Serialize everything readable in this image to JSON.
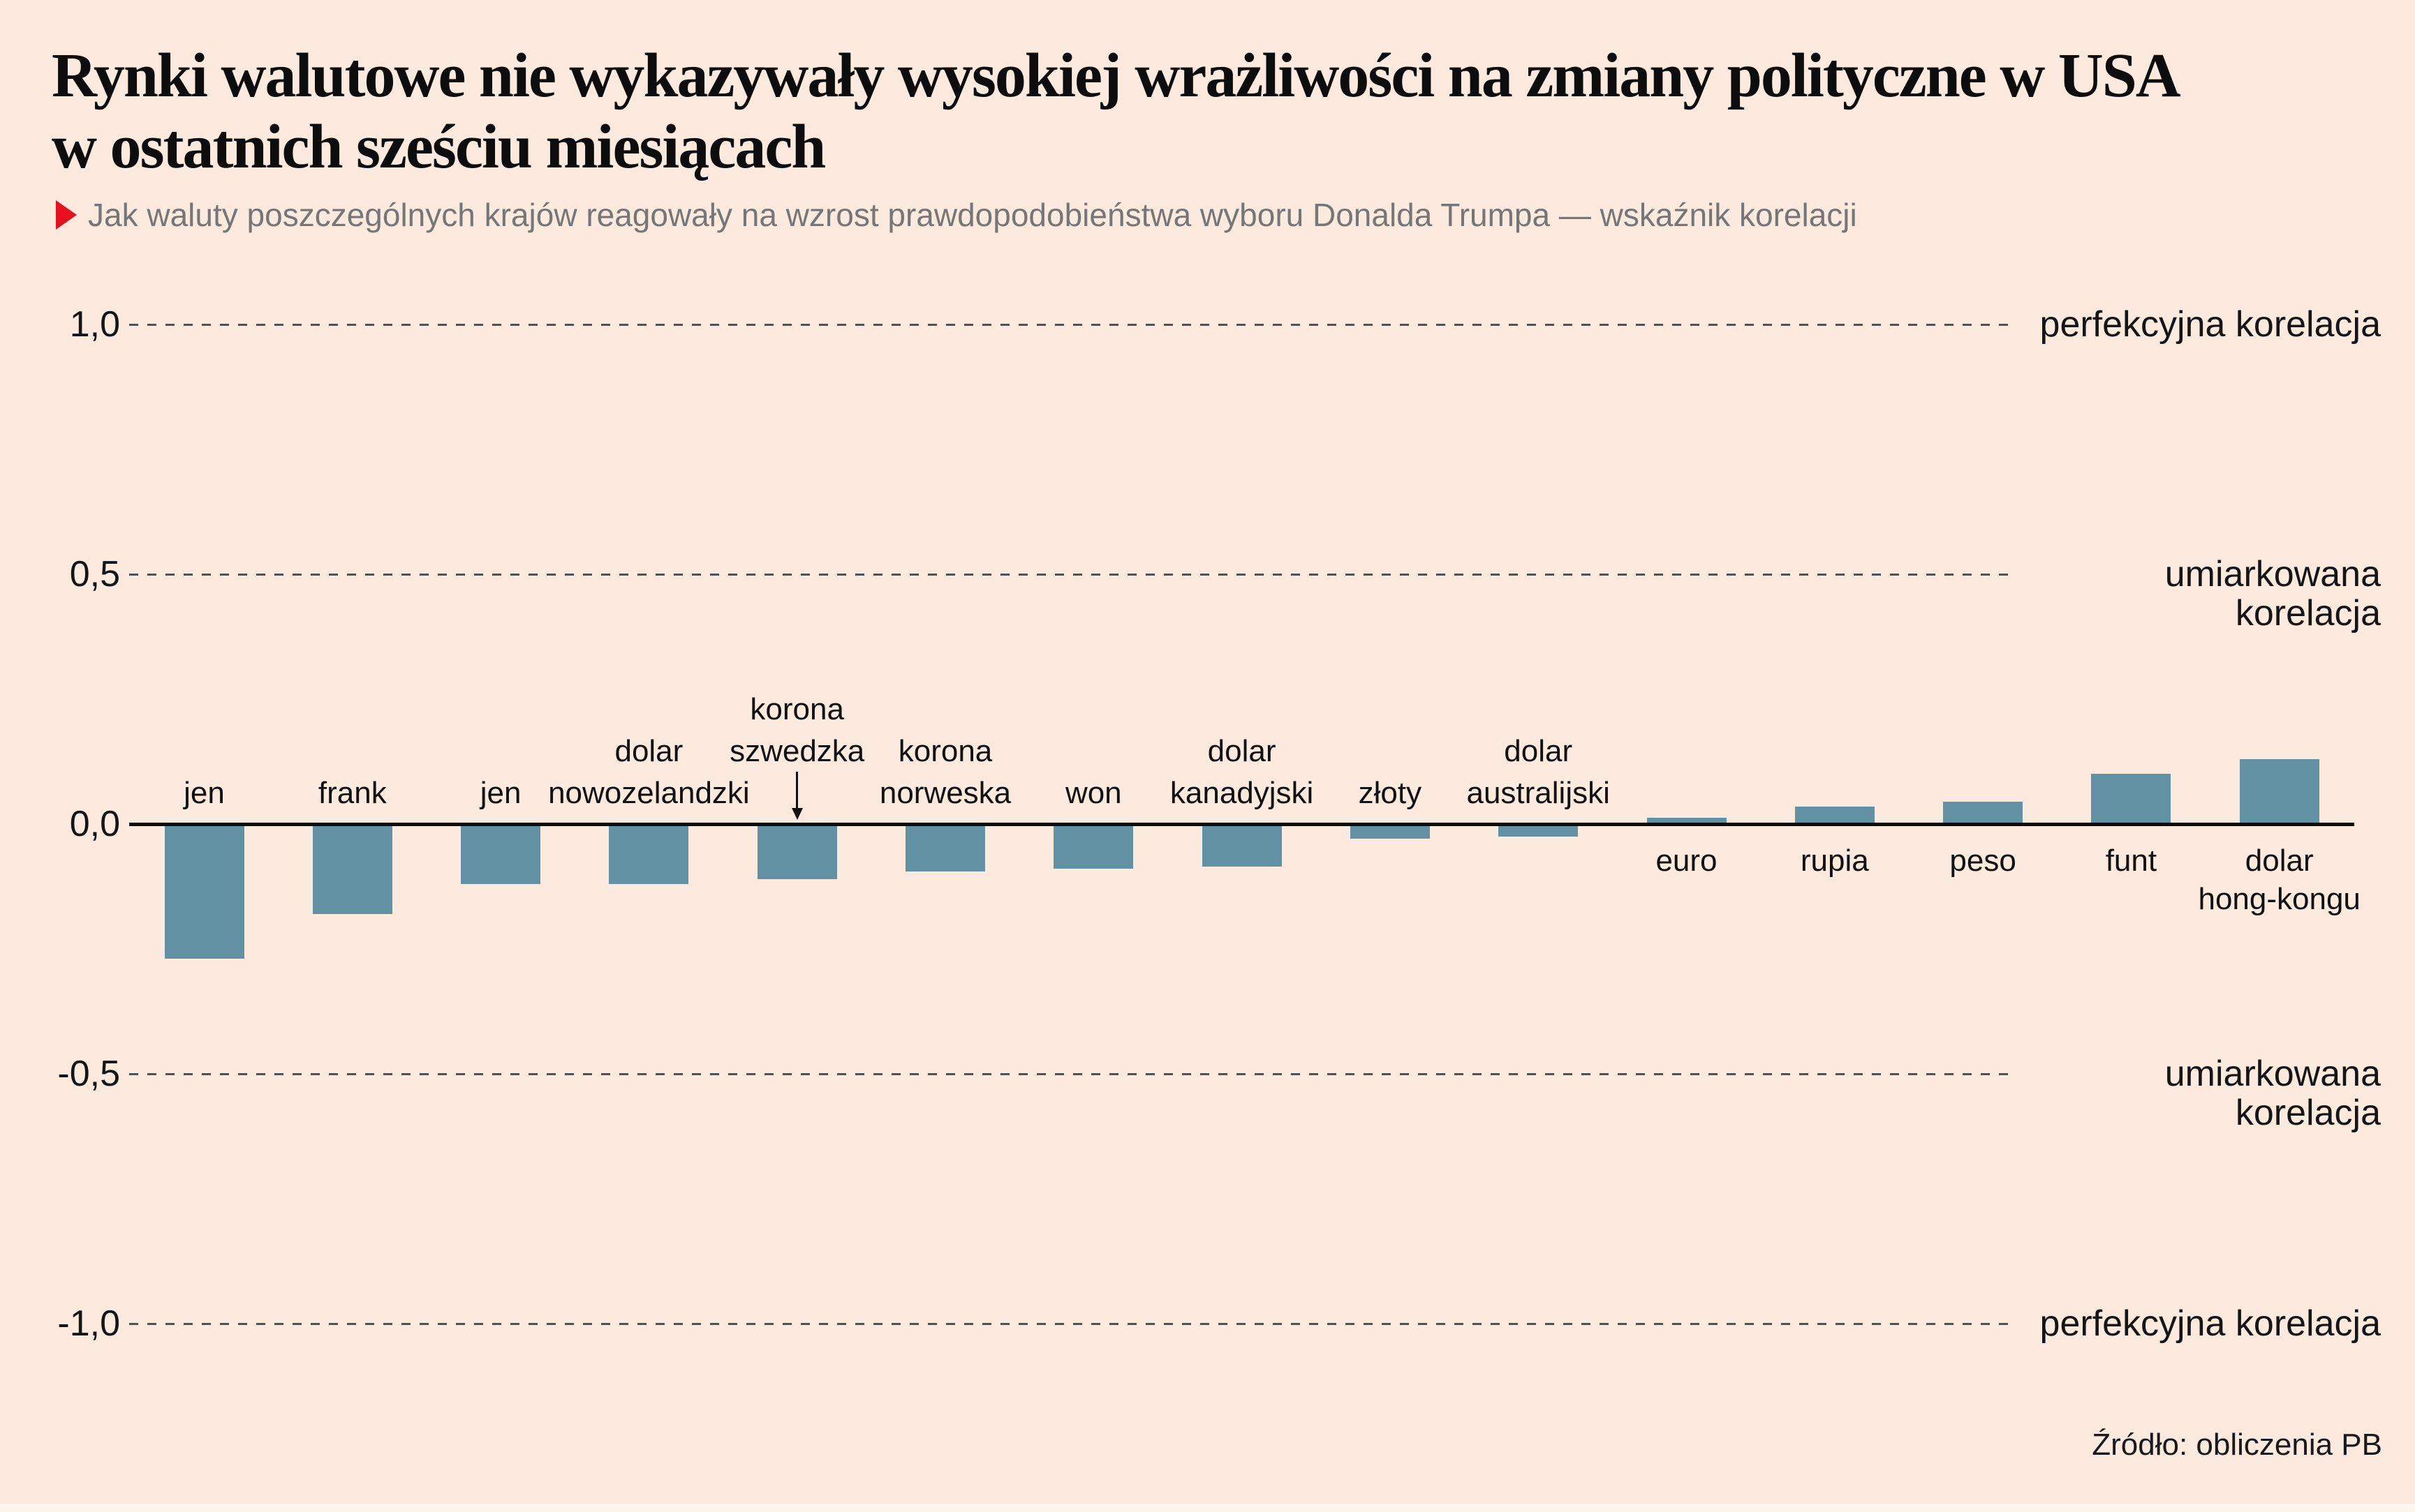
{
  "header": {
    "title_line1": "Rynki walutowe nie wykazywały wysokiej wrażliwości na zmiany polityczne w USA",
    "title_line2": "w ostatnich sześciu miesiącach",
    "subtitle": "Jak waluty poszczególnych krajów reagowały na wzrost prawdopodobieństwa wyboru Donalda Trumpa — wskaźnik korelacji"
  },
  "source": "Źródło: obliczenia PB",
  "colors": {
    "background": "#fbeadd",
    "bar": "#6391a4",
    "subtitle_gray": "#767676",
    "marker_red": "#e8101f",
    "axis_black": "#0b0b0b",
    "dash_gray": "#55514a"
  },
  "y_axis": {
    "ticks": [
      {
        "label": "1,0",
        "value": 1.0
      },
      {
        "label": "0,5",
        "value": 0.5
      },
      {
        "label": "0,0",
        "value": 0.0
      },
      {
        "label": "-0,5",
        "value": -0.5
      },
      {
        "label": "-1,0",
        "value": -1.0
      }
    ],
    "right_annotations": [
      {
        "text": "perfekcyjna korelacja",
        "value": 1.0
      },
      {
        "text": "umiarkowana korelacja",
        "value": 0.5
      },
      {
        "text": "umiarkowana korelacja",
        "value": -0.5
      },
      {
        "text": "perfekcyjna korelacja",
        "value": -1.0
      }
    ]
  },
  "chart_data": {
    "type": "bar",
    "title": "Jak waluty poszczególnych krajów reagowały na wzrost prawdopodobieństwa wyboru Donalda Trumpa — wskaźnik korelacji",
    "categories": [
      "jen",
      "frank",
      "jen",
      "dolar nowozelandzki",
      "korona szwedzka",
      "korona norweska",
      "won",
      "dolar kanadyjski",
      "złoty",
      "dolar australijski",
      "euro",
      "rupia",
      "peso",
      "funt",
      "dolar hong-kongu"
    ],
    "values": [
      -0.27,
      -0.18,
      -0.12,
      -0.12,
      -0.11,
      -0.095,
      -0.09,
      -0.085,
      -0.03,
      -0.025,
      0.012,
      0.035,
      0.045,
      0.1,
      0.13
    ],
    "ylim": [
      -1.0,
      1.0
    ],
    "ytick_labels": [
      "1,0",
      "0,5",
      "0,0",
      "-0,5",
      "-1,0"
    ],
    "grid": "dashed horizontal lines at +1.0, +0.5, -0.5, -1.0; solid zero axis",
    "legend": "none",
    "bar_color": "#6391a4"
  },
  "labels_layout": {
    "bars": [
      {
        "lines": [
          {
            "text": "jen",
            "row": "C"
          }
        ],
        "arrow": false
      },
      {
        "lines": [
          {
            "text": "frank",
            "row": "C"
          }
        ],
        "arrow": false
      },
      {
        "lines": [
          {
            "text": "jen",
            "row": "C"
          }
        ],
        "arrow": false
      },
      {
        "lines": [
          {
            "text": "dolar",
            "row": "B"
          },
          {
            "text": "nowozelandzki",
            "row": "C"
          }
        ],
        "arrow": false
      },
      {
        "lines": [
          {
            "text": "korona",
            "row": "A"
          },
          {
            "text": "szwedzka",
            "row": "B"
          }
        ],
        "arrow": true
      },
      {
        "lines": [
          {
            "text": "korona",
            "row": "B"
          },
          {
            "text": "norweska",
            "row": "C"
          }
        ],
        "arrow": false
      },
      {
        "lines": [
          {
            "text": "won",
            "row": "C"
          }
        ],
        "arrow": false
      },
      {
        "lines": [
          {
            "text": "dolar",
            "row": "B"
          },
          {
            "text": "kanadyjski",
            "row": "C"
          }
        ],
        "arrow": false
      },
      {
        "lines": [
          {
            "text": "złoty",
            "row": "C"
          }
        ],
        "arrow": false
      },
      {
        "lines": [
          {
            "text": "dolar",
            "row": "B"
          },
          {
            "text": "australijski",
            "row": "C"
          }
        ],
        "arrow": false
      },
      {
        "lines": [
          {
            "text": "euro",
            "row": "D"
          }
        ],
        "arrow": false
      },
      {
        "lines": [
          {
            "text": "rupia",
            "row": "D"
          }
        ],
        "arrow": false
      },
      {
        "lines": [
          {
            "text": "peso",
            "row": "D"
          }
        ],
        "arrow": false
      },
      {
        "lines": [
          {
            "text": "funt",
            "row": "D"
          }
        ],
        "arrow": false
      },
      {
        "lines": [
          {
            "text": "dolar",
            "row": "D"
          },
          {
            "text": "hong-kongu",
            "row": "E"
          }
        ],
        "arrow": false
      }
    ]
  }
}
